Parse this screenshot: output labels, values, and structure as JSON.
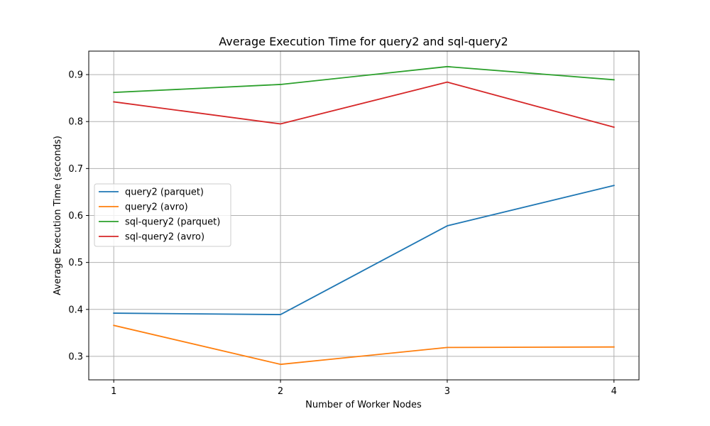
{
  "chart_data": {
    "type": "line",
    "title": "Average Execution Time for query2 and sql-query2",
    "xlabel": "Number of Worker Nodes",
    "ylabel": "Average Execution Time (seconds)",
    "x": [
      1,
      2,
      3,
      4
    ],
    "xticks": [
      "1",
      "2",
      "3",
      "4"
    ],
    "yticks": [
      "0.3",
      "0.4",
      "0.5",
      "0.6",
      "0.7",
      "0.8",
      "0.9"
    ],
    "xlim": [
      0.85,
      4.15
    ],
    "ylim": [
      0.25,
      0.95
    ],
    "grid": true,
    "legend_position": "center-left",
    "series": [
      {
        "name": "query2 (parquet)",
        "color": "#1f77b4",
        "values": [
          0.392,
          0.389,
          0.578,
          0.664
        ]
      },
      {
        "name": "query2 (avro)",
        "color": "#ff7f0e",
        "values": [
          0.366,
          0.283,
          0.319,
          0.32
        ]
      },
      {
        "name": "sql-query2 (parquet)",
        "color": "#2ca02c",
        "values": [
          0.862,
          0.879,
          0.917,
          0.889
        ]
      },
      {
        "name": "sql-query2 (avro)",
        "color": "#d62728",
        "values": [
          0.842,
          0.795,
          0.884,
          0.788
        ]
      }
    ]
  }
}
